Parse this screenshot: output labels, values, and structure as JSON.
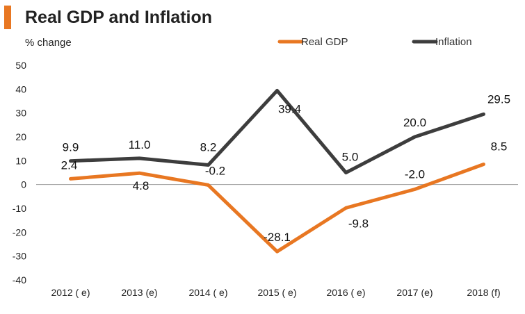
{
  "header": {
    "title": "Real GDP and Inflation"
  },
  "colors": {
    "accent": "#E87722",
    "real_gdp": "#E87722",
    "inflation": "#3D3D3D",
    "zero_line": "#9A9A9A"
  },
  "chart_data": {
    "type": "line",
    "title": "Real GDP and Inflation",
    "ylabel": "% change",
    "xlabel": "",
    "categories": [
      "2012 ( e)",
      "2013  (e)",
      "2014  ( e)",
      "2015 ( e)",
      "2016 ( e)",
      "2017 (e)",
      "2018 (f)"
    ],
    "ylim": [
      -40,
      50
    ],
    "yticks": [
      50,
      40,
      30,
      20,
      10,
      0,
      -10,
      -20,
      -30,
      -40
    ],
    "grid": false,
    "legend_position": "top-right",
    "series": [
      {
        "name": "Real GDP",
        "color": "#E87722",
        "values": [
          2.4,
          4.8,
          -0.2,
          -28.1,
          -9.8,
          -2.0,
          8.5
        ],
        "labels": [
          "2.4",
          "4.8",
          "-0.2",
          "-28.1",
          "-9.8",
          "-2.0",
          "8.5"
        ]
      },
      {
        "name": "Inflation",
        "color": "#3D3D3D",
        "values": [
          9.9,
          11.0,
          8.2,
          39.4,
          5.0,
          20.0,
          29.5
        ],
        "labels": [
          "9.9",
          "11.0",
          "8.2",
          "39.4",
          "5.0",
          "20.0",
          "29.5"
        ]
      }
    ]
  }
}
